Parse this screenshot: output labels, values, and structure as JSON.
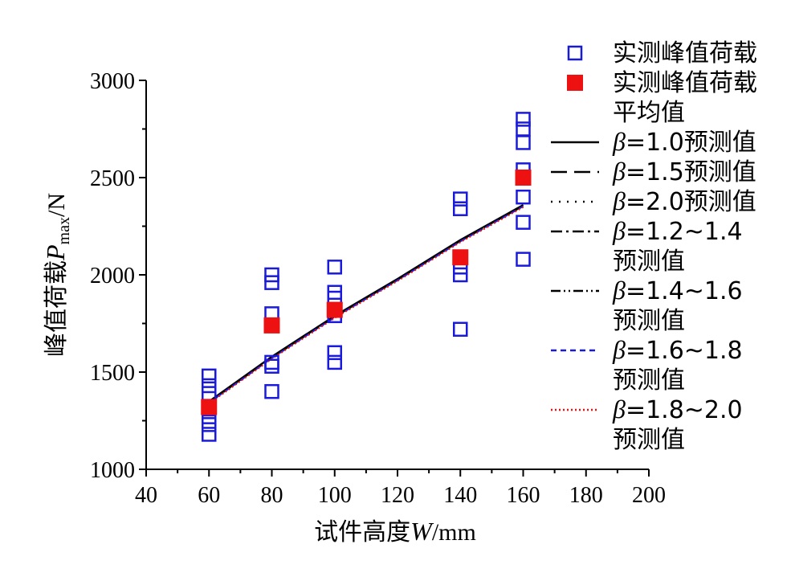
{
  "chart_data": {
    "type": "scatter",
    "title": "",
    "xlabel_prefix": "试件高度",
    "xlabel_var": "W",
    "xlabel_unit": "/mm",
    "ylabel_prefix": "峰值荷载",
    "ylabel_var": "P",
    "ylabel_sub": "max",
    "ylabel_unit": "/N",
    "xlim": [
      40,
      200
    ],
    "ylim": [
      1000,
      3000
    ],
    "xticks": [
      40,
      60,
      80,
      100,
      120,
      140,
      160,
      180,
      200
    ],
    "yticks": [
      1000,
      1500,
      2000,
      2500,
      3000
    ],
    "grid": false,
    "legend_position": "top-right (outside plot)",
    "series": [
      {
        "name": "实测峰值荷载",
        "kind": "marker",
        "marker": "open-square",
        "color": "#1a1adb",
        "points": [
          [
            60,
            1480
          ],
          [
            60,
            1430
          ],
          [
            60,
            1390
          ],
          [
            60,
            1310
          ],
          [
            60,
            1270
          ],
          [
            60,
            1230
          ],
          [
            60,
            1180
          ],
          [
            80,
            2000
          ],
          [
            80,
            1960
          ],
          [
            80,
            1800
          ],
          [
            80,
            1550
          ],
          [
            80,
            1530
          ],
          [
            80,
            1400
          ],
          [
            100,
            2040
          ],
          [
            100,
            1910
          ],
          [
            100,
            1880
          ],
          [
            100,
            1790
          ],
          [
            100,
            1600
          ],
          [
            100,
            1550
          ],
          [
            140,
            2390
          ],
          [
            140,
            2340
          ],
          [
            140,
            2040
          ],
          [
            140,
            2000
          ],
          [
            140,
            1720
          ],
          [
            160,
            2800
          ],
          [
            160,
            2750
          ],
          [
            160,
            2680
          ],
          [
            160,
            2540
          ],
          [
            160,
            2400
          ],
          [
            160,
            2270
          ],
          [
            160,
            2080
          ]
        ]
      },
      {
        "name_line1": "实测峰值荷载",
        "name_line2": "平均值",
        "kind": "marker",
        "marker": "filled-square",
        "color": "#ee1111",
        "points": [
          [
            60,
            1320
          ],
          [
            80,
            1740
          ],
          [
            100,
            1820
          ],
          [
            140,
            2090
          ],
          [
            160,
            2500
          ]
        ]
      },
      {
        "name_beta": "β",
        "name_rest": "=1.0预测值",
        "kind": "line",
        "dash": "solid",
        "color": "#000000",
        "points": [
          [
            60,
            1350
          ],
          [
            80,
            1580
          ],
          [
            100,
            1790
          ],
          [
            120,
            1980
          ],
          [
            140,
            2180
          ],
          [
            160,
            2360
          ]
        ]
      },
      {
        "name_beta": "β",
        "name_rest": "=1.5预测值",
        "kind": "line",
        "dash": "long-dash",
        "color": "#000000",
        "points": [
          [
            60,
            1345
          ],
          [
            80,
            1575
          ],
          [
            100,
            1785
          ],
          [
            120,
            1975
          ],
          [
            140,
            2175
          ],
          [
            160,
            2355
          ]
        ]
      },
      {
        "name_beta": "β",
        "name_rest": "=2.0预测值",
        "kind": "line",
        "dash": "dot",
        "color": "#000000",
        "points": [
          [
            60,
            1340
          ],
          [
            80,
            1570
          ],
          [
            100,
            1780
          ],
          [
            120,
            1970
          ],
          [
            140,
            2170
          ],
          [
            160,
            2350
          ]
        ]
      },
      {
        "name_beta": "β",
        "name_rest": "=1.2~1.4",
        "name_line2": "预测值",
        "kind": "line",
        "dash": "dash-dot",
        "color": "#000000",
        "points": [
          [
            60,
            1348
          ],
          [
            80,
            1578
          ],
          [
            100,
            1788
          ],
          [
            120,
            1978
          ],
          [
            140,
            2178
          ],
          [
            160,
            2358
          ]
        ]
      },
      {
        "name_beta": "β",
        "name_rest": "=1.4~1.6",
        "name_line2": "预测值",
        "kind": "line",
        "dash": "dash-dot-dot",
        "color": "#000000",
        "points": [
          [
            60,
            1344
          ],
          [
            80,
            1574
          ],
          [
            100,
            1784
          ],
          [
            120,
            1974
          ],
          [
            140,
            2174
          ],
          [
            160,
            2354
          ]
        ]
      },
      {
        "name_beta": "β",
        "name_rest": "=1.6~1.8",
        "name_line2": "预测值",
        "kind": "line",
        "dash": "short-dash",
        "color": "#1a1adb",
        "points": [
          [
            60,
            1342
          ],
          [
            80,
            1572
          ],
          [
            100,
            1782
          ],
          [
            120,
            1972
          ],
          [
            140,
            2172
          ],
          [
            160,
            2352
          ]
        ]
      },
      {
        "name_beta": "β",
        "name_rest": "=1.8~2.0",
        "name_line2": "预测值",
        "kind": "line",
        "dash": "short-dot",
        "color": "#ee1111",
        "points": [
          [
            60,
            1338
          ],
          [
            80,
            1568
          ],
          [
            100,
            1778
          ],
          [
            120,
            1968
          ],
          [
            140,
            2168
          ],
          [
            160,
            2348
          ]
        ]
      }
    ]
  }
}
